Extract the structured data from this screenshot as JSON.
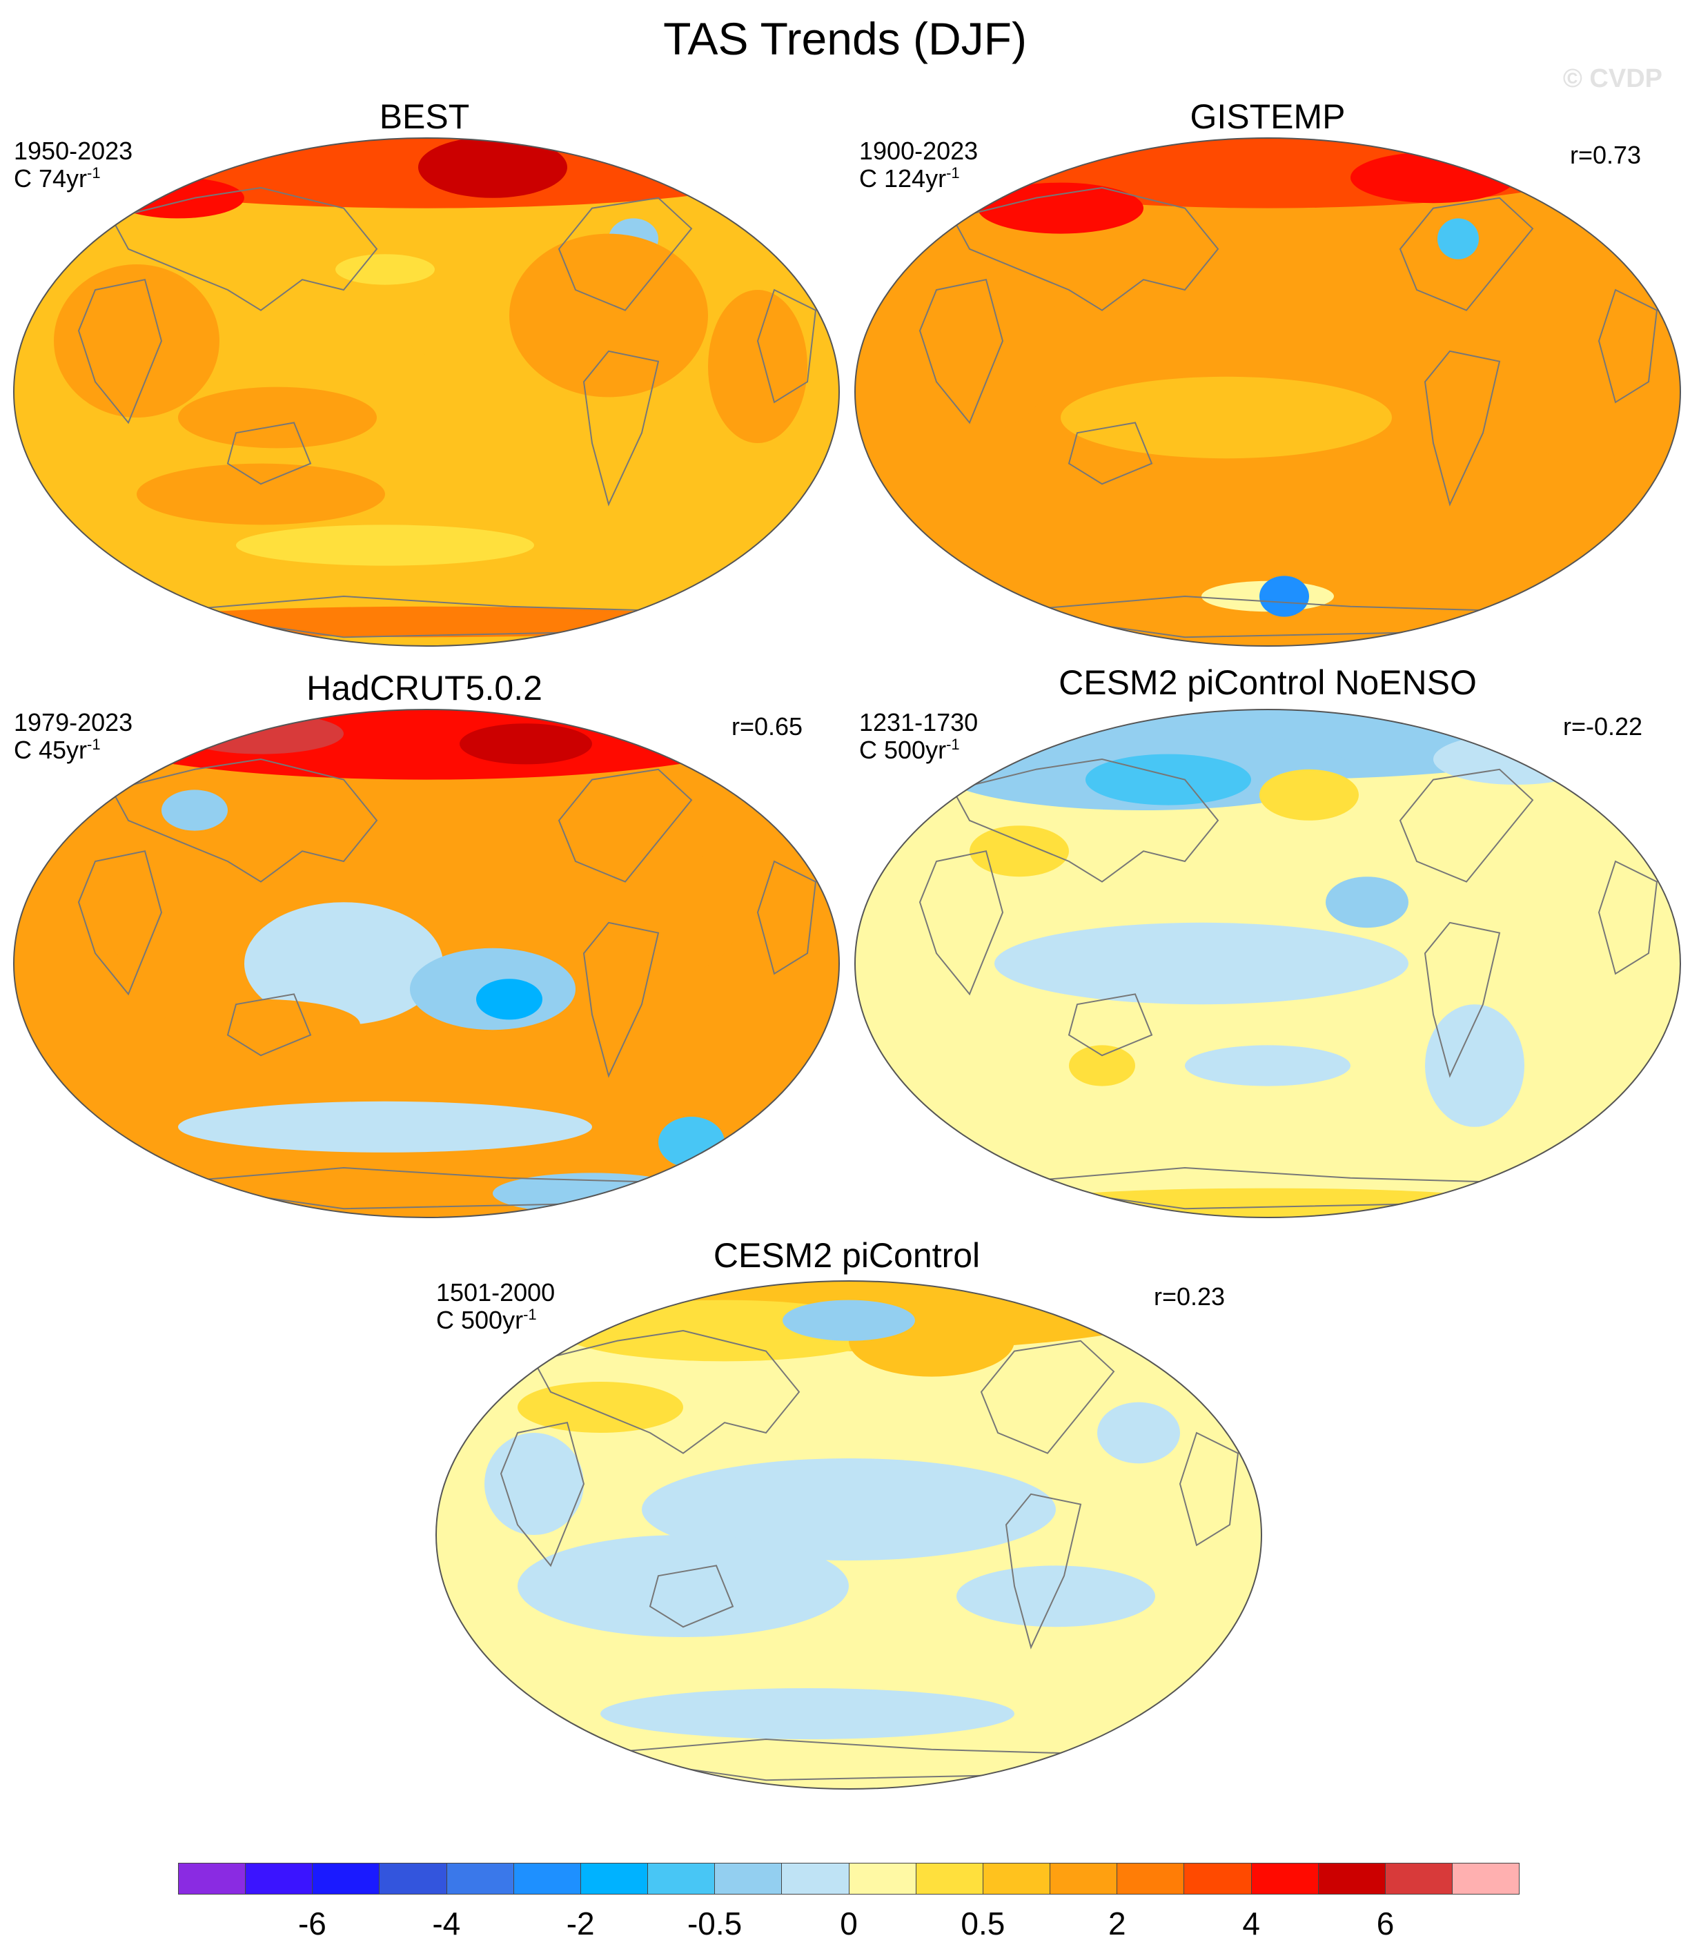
{
  "title": "TAS Trends (DJF)",
  "watermark": "© CVDP",
  "colorbar": {
    "colors": [
      "#8a2be2",
      "#3b14ff",
      "#1a1aff",
      "#3355dd",
      "#3a78ea",
      "#1e90ff",
      "#00b2ff",
      "#48c6f5",
      "#93cff0",
      "#bfe3f5",
      "#fff9a4",
      "#ffe03d",
      "#ffc21e",
      "#ffa010",
      "#ff7d06",
      "#ff4a00",
      "#ff0a00",
      "#cc0000",
      "#d83a3a",
      "#ffb0b0"
    ],
    "labels": [
      {
        "text": "-6",
        "boundary": 2
      },
      {
        "text": "-4",
        "boundary": 4
      },
      {
        "text": "-2",
        "boundary": 6
      },
      {
        "text": "-0.5",
        "boundary": 8
      },
      {
        "text": "0",
        "boundary": 10
      },
      {
        "text": "0.5",
        "boundary": 12
      },
      {
        "text": "2",
        "boundary": 14
      },
      {
        "text": "4",
        "boundary": 16
      },
      {
        "text": "6",
        "boundary": 18
      }
    ]
  },
  "chart_data": [
    {
      "type": "heatmap",
      "title": "BEST",
      "period": "1950-2023",
      "count": "C 74yr",
      "count_exp": "-1",
      "correlation": "",
      "dominant_color": "#ffc21e",
      "arctic_color": "#ff4a00"
    },
    {
      "type": "heatmap",
      "title": "GISTEMP",
      "period": "1900-2023",
      "count": "C 124yr",
      "count_exp": "-1",
      "correlation": "r=0.73",
      "dominant_color": "#ffa010",
      "arctic_color": "#ff4a00"
    },
    {
      "type": "heatmap",
      "title": "HadCRUT5.0.2",
      "period": "1979-2023",
      "count": "C 45yr",
      "count_exp": "-1",
      "correlation": "r=0.65",
      "dominant_color": "#ffa010",
      "arctic_color": "#ff0a00"
    },
    {
      "type": "heatmap",
      "title": "CESM2 piControl NoENSO",
      "period": "1231-1730",
      "count": "C 500yr",
      "count_exp": "-1",
      "correlation": "r=-0.22",
      "dominant_color": "#fff9a4",
      "arctic_color": "#93cff0"
    },
    {
      "type": "heatmap",
      "title": "CESM2 piControl",
      "period": "1501-2000",
      "count": "C 500yr",
      "count_exp": "-1",
      "correlation": "r=0.23",
      "dominant_color": "#fff9a4",
      "arctic_color": "#ffc21e"
    }
  ]
}
